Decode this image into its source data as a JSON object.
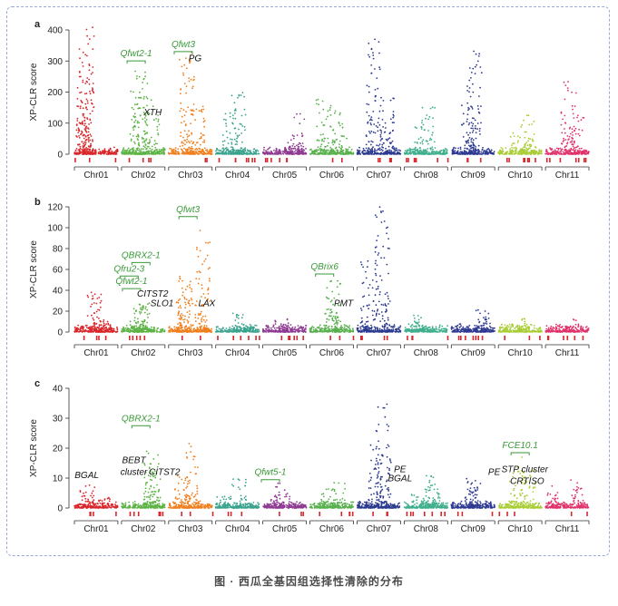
{
  "figure": {
    "caption": "图 · 西瓜全基因组选择性清除的分布"
  },
  "chart_data": [
    {
      "panel": "a",
      "type": "scatter",
      "ylabel": "XP-CLR score",
      "ylim": [
        0,
        400
      ],
      "yticks": [
        0,
        100,
        200,
        300,
        400
      ],
      "categories": [
        "Chr01",
        "Chr02",
        "Chr03",
        "Chr04",
        "Chr05",
        "Chr06",
        "Chr07",
        "Chr08",
        "Chr09",
        "Chr10",
        "Chr11"
      ],
      "chromosome_colors": [
        "#d9262b",
        "#5db346",
        "#f07f1e",
        "#3aa38e",
        "#8e3a92",
        "#58b04d",
        "#2b3a8f",
        "#3fae8c",
        "#2e3a92",
        "#a9cd36",
        "#e0336b"
      ],
      "chromosome_peaks": [
        410,
        270,
        335,
        200,
        130,
        185,
        375,
        155,
        340,
        130,
        250
      ],
      "labels": [
        {
          "text": "Qfwt2-1",
          "chr": 1,
          "pos": 0.35,
          "value": 315,
          "kind": "qtl"
        },
        {
          "text": "Qfwt3",
          "chr": 2,
          "pos": 0.35,
          "value": 345,
          "kind": "qtl"
        },
        {
          "text": "PG",
          "chr": 2,
          "pos": 0.6,
          "value": 300,
          "kind": "gene"
        },
        {
          "text": "XTH",
          "chr": 1,
          "pos": 0.7,
          "value": 125,
          "kind": "gene"
        }
      ],
      "sweep_markers": "red ticks below axis"
    },
    {
      "panel": "b",
      "type": "scatter",
      "ylabel": "XP-CLR score",
      "ylim": [
        0,
        120
      ],
      "yticks": [
        0,
        20,
        40,
        60,
        80,
        100,
        120
      ],
      "categories": [
        "Chr01",
        "Chr02",
        "Chr03",
        "Chr04",
        "Chr05",
        "Chr06",
        "Chr07",
        "Chr08",
        "Chr09",
        "Chr10",
        "Chr11"
      ],
      "chromosome_colors": [
        "#d9262b",
        "#5db346",
        "#f07f1e",
        "#3aa38e",
        "#8e3a92",
        "#58b04d",
        "#2b3a8f",
        "#3fae8c",
        "#2e3a92",
        "#a9cd36",
        "#e0336b"
      ],
      "chromosome_peaks": [
        38,
        32,
        100,
        18,
        14,
        50,
        120,
        16,
        22,
        14,
        14
      ],
      "labels": [
        {
          "text": "Qfwt3",
          "chr": 2,
          "pos": 0.45,
          "value": 115,
          "kind": "qtl"
        },
        {
          "text": "QBRX2-1",
          "chr": 1,
          "pos": 0.45,
          "value": 71,
          "kind": "qtl"
        },
        {
          "text": "Qfru2-3",
          "chr": 1,
          "pos": 0.2,
          "value": 58,
          "kind": "qtl"
        },
        {
          "text": "Qfwt2-1",
          "chr": 1,
          "pos": 0.25,
          "value": 46,
          "kind": "qtl"
        },
        {
          "text": "QBrix6",
          "chr": 5,
          "pos": 0.35,
          "value": 60,
          "kind": "qtl"
        },
        {
          "text": "CITST2",
          "chr": 1,
          "pos": 0.7,
          "value": 34,
          "kind": "gene"
        },
        {
          "text": "SLO1",
          "chr": 1,
          "pos": 0.9,
          "value": 25,
          "kind": "gene"
        },
        {
          "text": "LAX",
          "chr": 2,
          "pos": 0.85,
          "value": 25,
          "kind": "gene"
        },
        {
          "text": "PMT",
          "chr": 5,
          "pos": 0.75,
          "value": 25,
          "kind": "gene"
        }
      ],
      "sweep_markers": "red ticks below axis"
    },
    {
      "panel": "c",
      "type": "scatter",
      "ylabel": "XP-CLR score",
      "ylim": [
        0,
        40
      ],
      "yticks": [
        0,
        10,
        20,
        30,
        40
      ],
      "categories": [
        "Chr01",
        "Chr02",
        "Chr03",
        "Chr04",
        "Chr05",
        "Chr06",
        "Chr07",
        "Chr08",
        "Chr09",
        "Chr10",
        "Chr11"
      ],
      "chromosome_colors": [
        "#d9262b",
        "#5db346",
        "#f07f1e",
        "#3aa38e",
        "#8e3a92",
        "#58b04d",
        "#2b3a8f",
        "#3fae8c",
        "#2e3a92",
        "#a9cd36",
        "#e0336b"
      ],
      "chromosome_peaks": [
        9,
        19,
        22,
        10,
        9,
        9,
        35,
        11,
        10,
        17,
        10
      ],
      "labels": [
        {
          "text": "QBRX2-1",
          "chr": 1,
          "pos": 0.45,
          "value": 29,
          "kind": "qtl"
        },
        {
          "text": "Qfwt5-1",
          "chr": 4,
          "pos": 0.2,
          "value": 11,
          "kind": "qtl"
        },
        {
          "text": "FCE10.1",
          "chr": 9,
          "pos": 0.5,
          "value": 20,
          "kind": "qtl"
        },
        {
          "text": "BGAL",
          "chr": 0,
          "pos": 0.3,
          "value": 10,
          "kind": "gene"
        },
        {
          "text": "BEBT",
          "chr": 1,
          "pos": 0.3,
          "value": 15,
          "kind": "gene"
        },
        {
          "text": "cluster",
          "chr": 1,
          "pos": 0.3,
          "value": 11,
          "kind": "gene"
        },
        {
          "text": "CITST2",
          "chr": 1,
          "pos": 0.95,
          "value": 11,
          "kind": "gene"
        },
        {
          "text": "PE",
          "chr": 6,
          "pos": 0.95,
          "value": 12,
          "kind": "gene"
        },
        {
          "text": "BGAL",
          "chr": 6,
          "pos": 0.95,
          "value": 9,
          "kind": "gene"
        },
        {
          "text": "PE",
          "chr": 8,
          "pos": 0.95,
          "value": 11,
          "kind": "gene"
        },
        {
          "text": "STP cluster",
          "chr": 9,
          "pos": 0.6,
          "value": 12,
          "kind": "gene"
        },
        {
          "text": "CRTISO",
          "chr": 9,
          "pos": 0.65,
          "value": 8,
          "kind": "gene"
        }
      ],
      "sweep_markers": "red ticks below axis"
    }
  ]
}
